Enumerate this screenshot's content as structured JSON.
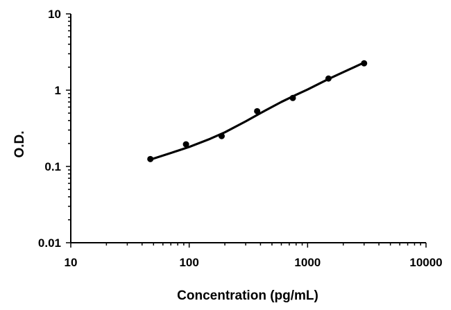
{
  "chart_data": {
    "type": "scatter",
    "title": "",
    "xlabel": "Concentration (pg/mL)",
    "ylabel": "O.D.",
    "xscale": "log",
    "yscale": "log",
    "xlim": [
      10,
      10000
    ],
    "ylim": [
      0.01,
      10
    ],
    "x_ticks": [
      "10",
      "100",
      "1000",
      "10000"
    ],
    "y_ticks": [
      "0.01",
      "0.1",
      "1",
      "10"
    ],
    "grid": false,
    "legend": "none",
    "series": [
      {
        "points": [
          {
            "x": 47,
            "y": 0.125
          },
          {
            "x": 94,
            "y": 0.195
          },
          {
            "x": 188,
            "y": 0.25
          },
          {
            "x": 375,
            "y": 0.53
          },
          {
            "x": 750,
            "y": 0.79
          },
          {
            "x": 1500,
            "y": 1.42
          },
          {
            "x": 3000,
            "y": 2.25
          }
        ],
        "fit_curve": [
          {
            "x": 47,
            "y": 0.123
          },
          {
            "x": 70,
            "y": 0.15
          },
          {
            "x": 100,
            "y": 0.18
          },
          {
            "x": 150,
            "y": 0.23
          },
          {
            "x": 200,
            "y": 0.28
          },
          {
            "x": 300,
            "y": 0.39
          },
          {
            "x": 400,
            "y": 0.5
          },
          {
            "x": 600,
            "y": 0.7
          },
          {
            "x": 800,
            "y": 0.87
          },
          {
            "x": 1000,
            "y": 1.02
          },
          {
            "x": 1500,
            "y": 1.4
          },
          {
            "x": 2000,
            "y": 1.72
          },
          {
            "x": 3000,
            "y": 2.3
          }
        ]
      }
    ],
    "colors": {
      "points": "#000000",
      "line": "#000000",
      "axis": "#000000"
    }
  }
}
